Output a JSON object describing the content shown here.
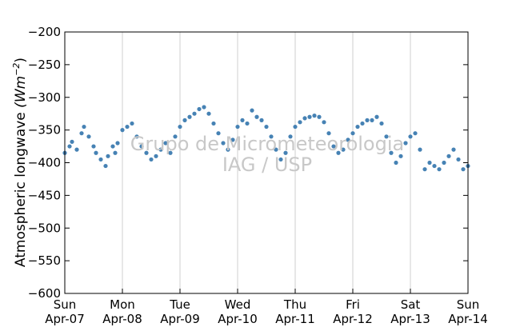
{
  "chart_data": {
    "type": "scatter",
    "title": "",
    "ylabel": "Atmospheric longwave",
    "ylabel_units": "(Wm",
    "ylabel_exp": "−2",
    "ylabel_close": ")",
    "ylim": [
      -600,
      -200
    ],
    "yticks": [
      -600,
      -550,
      -500,
      -450,
      -400,
      -350,
      -300,
      -250,
      -200
    ],
    "ytick_labels": [
      "−600",
      "−550",
      "−500",
      "−450",
      "−400",
      "−350",
      "−300",
      "−250",
      "−200"
    ],
    "xlim": [
      "2013-04-07",
      "2013-04-14"
    ],
    "x_days": 7,
    "xticks": [
      {
        "day": "Sun",
        "date": "Apr-07"
      },
      {
        "day": "Mon",
        "date": "Apr-08"
      },
      {
        "day": "Tue",
        "date": "Apr-09"
      },
      {
        "day": "Wed",
        "date": "Apr-10"
      },
      {
        "day": "Thu",
        "date": "Apr-11"
      },
      {
        "day": "Fri",
        "date": "Apr-12"
      },
      {
        "day": "Sat",
        "date": "Apr-13"
      },
      {
        "day": "Sun",
        "date": "Apr-14"
      }
    ],
    "grid": "vertical",
    "marker_color": "#4682b4",
    "series": [
      {
        "values": [
          [
            "2013-04-07 00:00",
            -385
          ],
          [
            "2013-04-07 02:00",
            -375
          ],
          [
            "2013-04-07 03:00",
            -368
          ],
          [
            "2013-04-07 05:00",
            -380
          ],
          [
            "2013-04-07 07:00",
            -355
          ],
          [
            "2013-04-07 08:00",
            -345
          ],
          [
            "2013-04-07 10:00",
            -360
          ],
          [
            "2013-04-07 12:00",
            -375
          ],
          [
            "2013-04-07 13:00",
            -385
          ],
          [
            "2013-04-07 15:00",
            -395
          ],
          [
            "2013-04-07 17:00",
            -405
          ],
          [
            "2013-04-07 18:00",
            -390
          ],
          [
            "2013-04-07 20:00",
            -375
          ],
          [
            "2013-04-07 21:00",
            -385
          ],
          [
            "2013-04-07 22:00",
            -370
          ],
          [
            "2013-04-08 00:00",
            -350
          ],
          [
            "2013-04-08 02:00",
            -345
          ],
          [
            "2013-04-08 04:00",
            -340
          ],
          [
            "2013-04-08 06:00",
            -360
          ],
          [
            "2013-04-08 08:00",
            -375
          ],
          [
            "2013-04-08 10:00",
            -385
          ],
          [
            "2013-04-08 12:00",
            -395
          ],
          [
            "2013-04-08 14:00",
            -390
          ],
          [
            "2013-04-08 16:00",
            -380
          ],
          [
            "2013-04-08 18:00",
            -370
          ],
          [
            "2013-04-08 20:00",
            -385
          ],
          [
            "2013-04-08 22:00",
            -360
          ],
          [
            "2013-04-09 00:00",
            -345
          ],
          [
            "2013-04-09 02:00",
            -335
          ],
          [
            "2013-04-09 04:00",
            -330
          ],
          [
            "2013-04-09 06:00",
            -325
          ],
          [
            "2013-04-09 08:00",
            -318
          ],
          [
            "2013-04-09 10:00",
            -315
          ],
          [
            "2013-04-09 12:00",
            -325
          ],
          [
            "2013-04-09 14:00",
            -340
          ],
          [
            "2013-04-09 16:00",
            -355
          ],
          [
            "2013-04-09 18:00",
            -370
          ],
          [
            "2013-04-09 20:00",
            -380
          ],
          [
            "2013-04-09 22:00",
            -365
          ],
          [
            "2013-04-10 00:00",
            -345
          ],
          [
            "2013-04-10 02:00",
            -335
          ],
          [
            "2013-04-10 04:00",
            -340
          ],
          [
            "2013-04-10 06:00",
            -320
          ],
          [
            "2013-04-10 08:00",
            -330
          ],
          [
            "2013-04-10 10:00",
            -335
          ],
          [
            "2013-04-10 12:00",
            -345
          ],
          [
            "2013-04-10 14:00",
            -360
          ],
          [
            "2013-04-10 16:00",
            -380
          ],
          [
            "2013-04-10 18:00",
            -395
          ],
          [
            "2013-04-10 20:00",
            -385
          ],
          [
            "2013-04-10 22:00",
            -360
          ],
          [
            "2013-04-11 00:00",
            -345
          ],
          [
            "2013-04-11 02:00",
            -338
          ],
          [
            "2013-04-11 04:00",
            -332
          ],
          [
            "2013-04-11 06:00",
            -330
          ],
          [
            "2013-04-11 08:00",
            -328
          ],
          [
            "2013-04-11 10:00",
            -330
          ],
          [
            "2013-04-11 12:00",
            -338
          ],
          [
            "2013-04-11 14:00",
            -355
          ],
          [
            "2013-04-11 16:00",
            -375
          ],
          [
            "2013-04-11 18:00",
            -385
          ],
          [
            "2013-04-11 20:00",
            -380
          ],
          [
            "2013-04-11 22:00",
            -365
          ],
          [
            "2013-04-12 00:00",
            -355
          ],
          [
            "2013-04-12 02:00",
            -345
          ],
          [
            "2013-04-12 04:00",
            -340
          ],
          [
            "2013-04-12 06:00",
            -335
          ],
          [
            "2013-04-12 08:00",
            -335
          ],
          [
            "2013-04-12 10:00",
            -330
          ],
          [
            "2013-04-12 12:00",
            -340
          ],
          [
            "2013-04-12 14:00",
            -360
          ],
          [
            "2013-04-12 16:00",
            -385
          ],
          [
            "2013-04-12 18:00",
            -400
          ],
          [
            "2013-04-12 20:00",
            -390
          ],
          [
            "2013-04-12 22:00",
            -370
          ],
          [
            "2013-04-13 00:00",
            -360
          ],
          [
            "2013-04-13 02:00",
            -355
          ],
          [
            "2013-04-13 04:00",
            -380
          ],
          [
            "2013-04-13 06:00",
            -410
          ],
          [
            "2013-04-13 08:00",
            -400
          ],
          [
            "2013-04-13 10:00",
            -405
          ],
          [
            "2013-04-13 12:00",
            -410
          ],
          [
            "2013-04-13 14:00",
            -400
          ],
          [
            "2013-04-13 16:00",
            -390
          ],
          [
            "2013-04-13 18:00",
            -380
          ],
          [
            "2013-04-13 20:00",
            -395
          ],
          [
            "2013-04-13 22:00",
            -410
          ],
          [
            "2013-04-13 23:59",
            -405
          ]
        ]
      }
    ]
  },
  "watermark": {
    "line1": "Grupo de Micrometeorologia",
    "line2": "IAG / USP"
  }
}
